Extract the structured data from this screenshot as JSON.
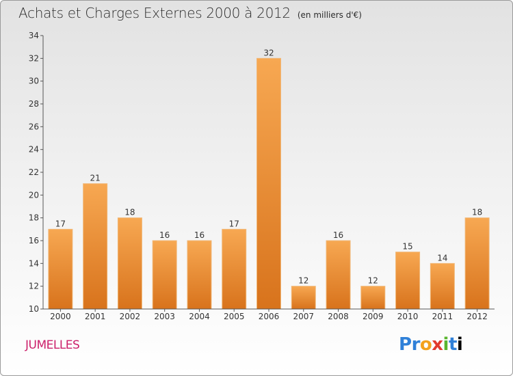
{
  "title": "Achats et Charges Externes 2000 à 2012",
  "unit_note": "(en milliers d'€)",
  "commune": "JUMELLES",
  "logo": "Proxiti",
  "colors": {
    "bar_light": "#f7a852",
    "bar_dark": "#d8731c",
    "commune": "#cc1f6a"
  },
  "chart_data": {
    "type": "bar",
    "title": "Achats et Charges Externes 2000 à 2012",
    "categories": [
      "2000",
      "2001",
      "2002",
      "2003",
      "2004",
      "2005",
      "2006",
      "2007",
      "2008",
      "2009",
      "2010",
      "2011",
      "2012"
    ],
    "values": [
      17,
      21,
      18,
      16,
      16,
      17,
      32,
      12,
      16,
      12,
      15,
      14,
      18
    ],
    "ylim": [
      10,
      34
    ],
    "yticks": [
      10,
      12,
      14,
      16,
      18,
      20,
      22,
      24,
      26,
      28,
      30,
      32,
      34
    ],
    "grid": false,
    "xlabel": "",
    "ylabel": ""
  }
}
